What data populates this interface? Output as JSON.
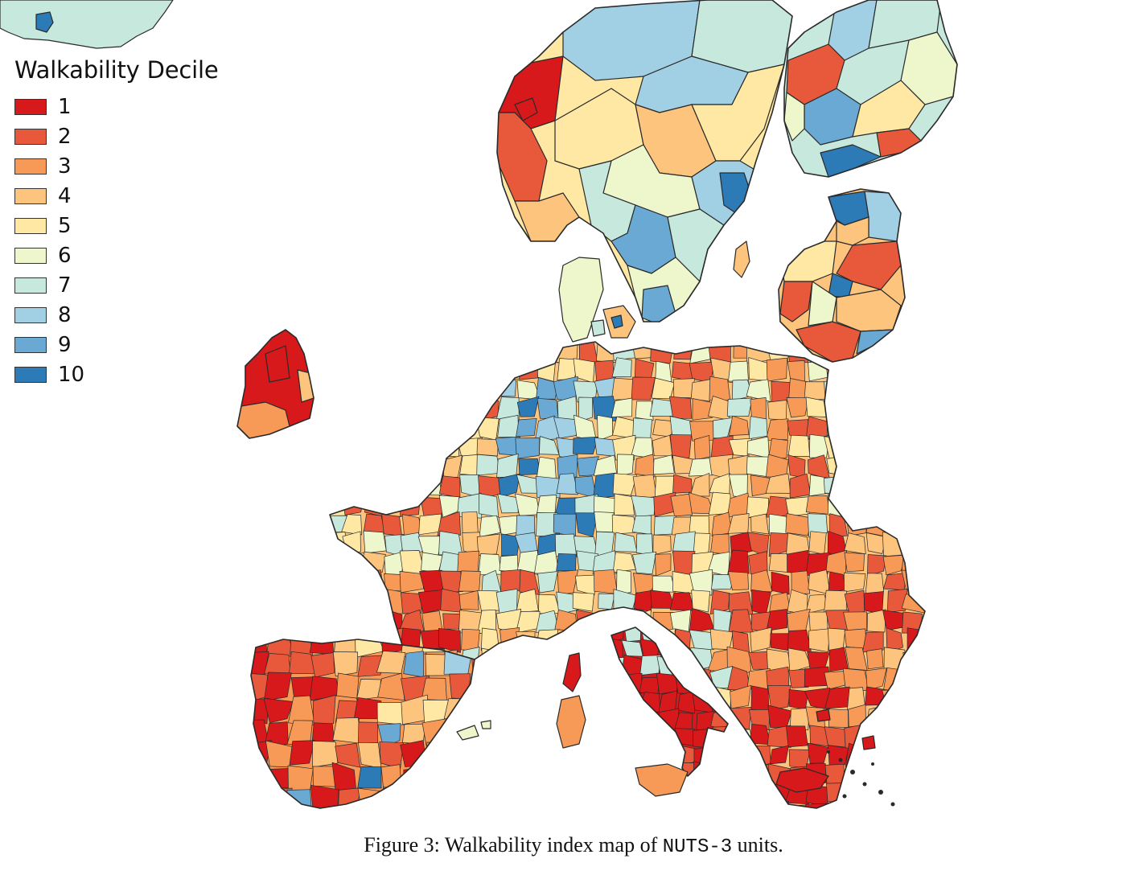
{
  "legend": {
    "title": "Walkability Decile",
    "items": [
      {
        "label": "1",
        "color": "#d7191c"
      },
      {
        "label": "2",
        "color": "#e8583a"
      },
      {
        "label": "3",
        "color": "#f79a57"
      },
      {
        "label": "4",
        "color": "#fdc47d"
      },
      {
        "label": "5",
        "color": "#fee8a4"
      },
      {
        "label": "6",
        "color": "#eef6cc"
      },
      {
        "label": "7",
        "color": "#c7e8dc"
      },
      {
        "label": "8",
        "color": "#a1cfe4"
      },
      {
        "label": "9",
        "color": "#6aa9d3"
      },
      {
        "label": "10",
        "color": "#2c7bb6"
      }
    ]
  },
  "caption": {
    "prefix": "Figure 3: Walkability index map of ",
    "code": "NUTS-3",
    "suffix": " units."
  }
}
